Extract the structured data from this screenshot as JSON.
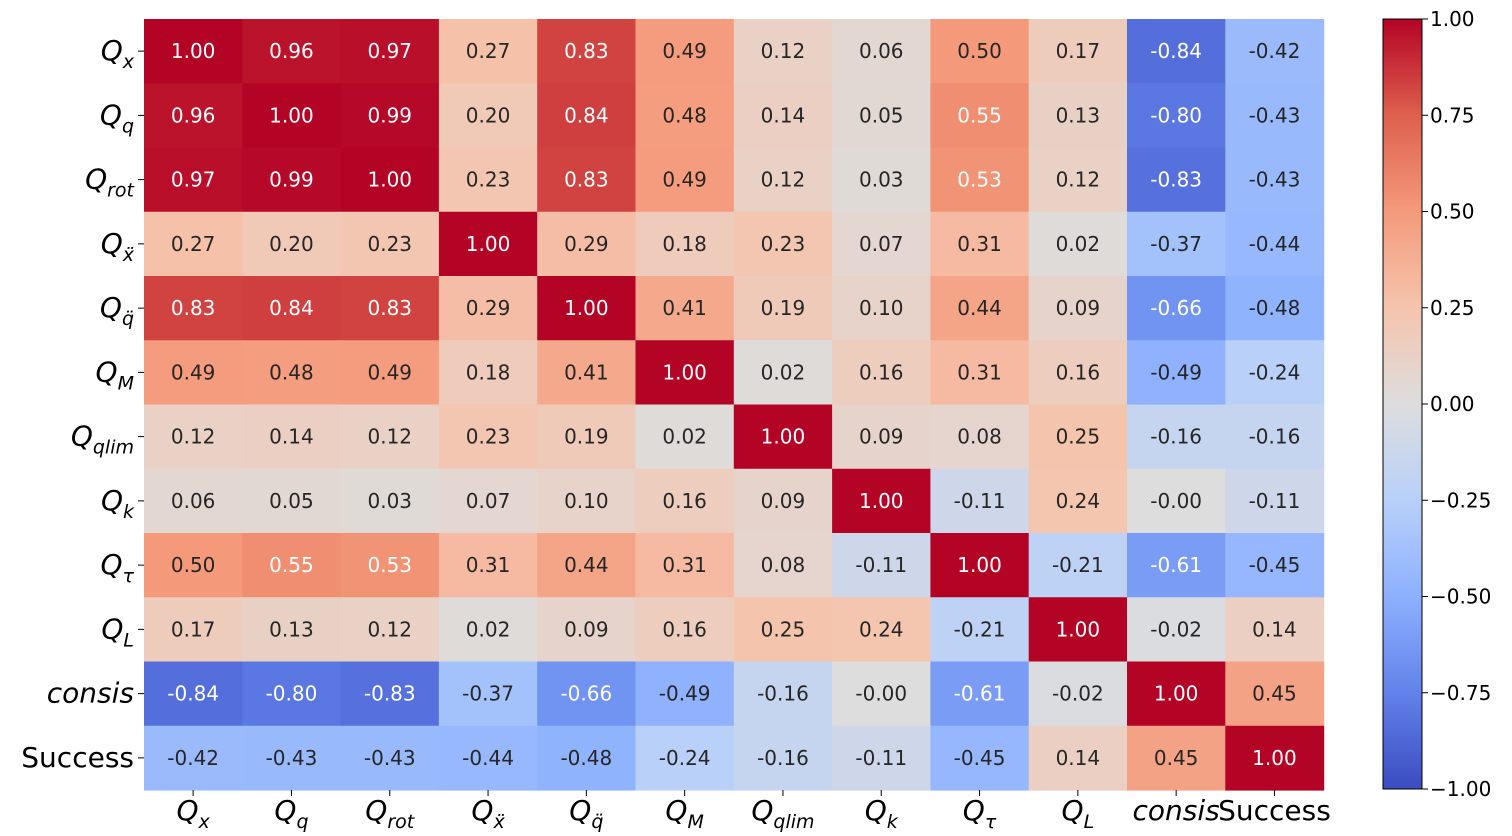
{
  "chart_data": {
    "type": "heatmap",
    "colormap": "coolwarm",
    "vmin": -1.0,
    "vmax": 1.0,
    "labels": [
      {
        "base": "Q",
        "sub": "x",
        "italic": true
      },
      {
        "base": "Q",
        "sub": "q",
        "italic": true
      },
      {
        "base": "Q",
        "sub": "rot",
        "italic": true
      },
      {
        "base": "Q",
        "sub": "ẍ",
        "italic": true
      },
      {
        "base": "Q",
        "sub": "q̈",
        "italic": true
      },
      {
        "base": "Q",
        "sub": "M",
        "italic": true
      },
      {
        "base": "Q",
        "sub": "qlim",
        "italic": true
      },
      {
        "base": "Q",
        "sub": "k",
        "italic": true
      },
      {
        "base": "Q",
        "sub": "τ",
        "italic": true
      },
      {
        "base": "Q",
        "sub": "L",
        "italic": true
      },
      {
        "base": "consis",
        "sub": "",
        "italic": true
      },
      {
        "base": "Success",
        "sub": "",
        "italic": false
      }
    ],
    "values": [
      [
        1.0,
        0.96,
        0.97,
        0.27,
        0.83,
        0.49,
        0.12,
        0.06,
        0.5,
        0.17,
        -0.84,
        -0.42
      ],
      [
        0.96,
        1.0,
        0.99,
        0.2,
        0.84,
        0.48,
        0.14,
        0.05,
        0.55,
        0.13,
        -0.8,
        -0.43
      ],
      [
        0.97,
        0.99,
        1.0,
        0.23,
        0.83,
        0.49,
        0.12,
        0.03,
        0.53,
        0.12,
        -0.83,
        -0.43
      ],
      [
        0.27,
        0.2,
        0.23,
        1.0,
        0.29,
        0.18,
        0.23,
        0.07,
        0.31,
        0.02,
        -0.37,
        -0.44
      ],
      [
        0.83,
        0.84,
        0.83,
        0.29,
        1.0,
        0.41,
        0.19,
        0.1,
        0.44,
        0.09,
        -0.66,
        -0.48
      ],
      [
        0.49,
        0.48,
        0.49,
        0.18,
        0.41,
        1.0,
        0.02,
        0.16,
        0.31,
        0.16,
        -0.49,
        -0.24
      ],
      [
        0.12,
        0.14,
        0.12,
        0.23,
        0.19,
        0.02,
        1.0,
        0.09,
        0.08,
        0.25,
        -0.16,
        -0.16
      ],
      [
        0.06,
        0.05,
        0.03,
        0.07,
        0.1,
        0.16,
        0.09,
        1.0,
        -0.11,
        0.24,
        -0.0,
        -0.11
      ],
      [
        0.5,
        0.55,
        0.53,
        0.31,
        0.44,
        0.31,
        0.08,
        -0.11,
        1.0,
        -0.21,
        -0.61,
        -0.45
      ],
      [
        0.17,
        0.13,
        0.12,
        0.02,
        0.09,
        0.16,
        0.25,
        0.24,
        -0.21,
        1.0,
        -0.02,
        0.14
      ],
      [
        -0.84,
        -0.8,
        -0.83,
        -0.37,
        -0.66,
        -0.49,
        -0.16,
        -0.0,
        -0.61,
        -0.02,
        1.0,
        0.45
      ],
      [
        -0.42,
        -0.43,
        -0.43,
        -0.44,
        -0.48,
        -0.24,
        -0.16,
        -0.11,
        -0.45,
        0.14,
        0.45,
        1.0
      ]
    ],
    "value_labels": [
      [
        "1.00",
        "0.96",
        "0.97",
        "0.27",
        "0.83",
        "0.49",
        "0.12",
        "0.06",
        "0.50",
        "0.17",
        "-0.84",
        "-0.42"
      ],
      [
        "0.96",
        "1.00",
        "0.99",
        "0.20",
        "0.84",
        "0.48",
        "0.14",
        "0.05",
        "0.55",
        "0.13",
        "-0.80",
        "-0.43"
      ],
      [
        "0.97",
        "0.99",
        "1.00",
        "0.23",
        "0.83",
        "0.49",
        "0.12",
        "0.03",
        "0.53",
        "0.12",
        "-0.83",
        "-0.43"
      ],
      [
        "0.27",
        "0.20",
        "0.23",
        "1.00",
        "0.29",
        "0.18",
        "0.23",
        "0.07",
        "0.31",
        "0.02",
        "-0.37",
        "-0.44"
      ],
      [
        "0.83",
        "0.84",
        "0.83",
        "0.29",
        "1.00",
        "0.41",
        "0.19",
        "0.10",
        "0.44",
        "0.09",
        "-0.66",
        "-0.48"
      ],
      [
        "0.49",
        "0.48",
        "0.49",
        "0.18",
        "0.41",
        "1.00",
        "0.02",
        "0.16",
        "0.31",
        "0.16",
        "-0.49",
        "-0.24"
      ],
      [
        "0.12",
        "0.14",
        "0.12",
        "0.23",
        "0.19",
        "0.02",
        "1.00",
        "0.09",
        "0.08",
        "0.25",
        "-0.16",
        "-0.16"
      ],
      [
        "0.06",
        "0.05",
        "0.03",
        "0.07",
        "0.10",
        "0.16",
        "0.09",
        "1.00",
        "-0.11",
        "0.24",
        "-0.00",
        "-0.11"
      ],
      [
        "0.50",
        "0.55",
        "0.53",
        "0.31",
        "0.44",
        "0.31",
        "0.08",
        "-0.11",
        "1.00",
        "-0.21",
        "-0.61",
        "-0.45"
      ],
      [
        "0.17",
        "0.13",
        "0.12",
        "0.02",
        "0.09",
        "0.16",
        "0.25",
        "0.24",
        "-0.21",
        "1.00",
        "-0.02",
        "0.14"
      ],
      [
        "-0.84",
        "-0.80",
        "-0.83",
        "-0.37",
        "-0.66",
        "-0.49",
        "-0.16",
        "-0.00",
        "-0.61",
        "-0.02",
        "1.00",
        "0.45"
      ],
      [
        "-0.42",
        "-0.43",
        "-0.43",
        "-0.44",
        "-0.48",
        "-0.24",
        "-0.16",
        "-0.11",
        "-0.45",
        "0.14",
        "0.45",
        "1.00"
      ]
    ],
    "colorbar": {
      "ticks": [
        1.0,
        0.75,
        0.5,
        0.25,
        0.0,
        -0.25,
        -0.5,
        -0.75,
        -1.0
      ],
      "tick_labels": [
        "1.00",
        "0.75",
        "0.50",
        "0.25",
        "0.00",
        "−0.25",
        "−0.50",
        "−0.75",
        "−1.00"
      ]
    },
    "title": "",
    "xlabel": "",
    "ylabel": ""
  }
}
